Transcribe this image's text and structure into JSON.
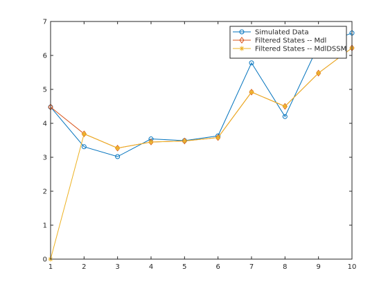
{
  "chart_data": {
    "type": "line",
    "title": "",
    "xlabel": "",
    "ylabel": "",
    "xlim": [
      1,
      10
    ],
    "ylim": [
      0,
      7
    ],
    "xticks": [
      1,
      2,
      3,
      4,
      5,
      6,
      7,
      8,
      9,
      10
    ],
    "yticks": [
      0,
      1,
      2,
      3,
      4,
      5,
      6,
      7
    ],
    "grid": false,
    "legend_position": "top-right",
    "x": [
      1,
      2,
      3,
      4,
      5,
      6,
      7,
      8,
      9,
      10
    ],
    "series": [
      {
        "name": "Simulated Data",
        "values": [
          4.48,
          3.31,
          3.02,
          3.54,
          3.49,
          3.63,
          5.78,
          4.2,
          6.3,
          6.66
        ],
        "color": "#0072BD",
        "marker": "circle"
      },
      {
        "name": "Filtered States -- Mdl",
        "values": [
          4.48,
          3.69,
          3.27,
          3.45,
          3.48,
          3.58,
          4.92,
          4.5,
          5.48,
          6.22
        ],
        "color": "#D95319",
        "marker": "diamond"
      },
      {
        "name": "Filtered States -- MdlDSSM",
        "values": [
          0.0,
          3.69,
          3.27,
          3.45,
          3.48,
          3.58,
          4.92,
          4.5,
          5.48,
          6.22
        ],
        "color": "#EDB120",
        "marker": "asterisk"
      }
    ]
  }
}
